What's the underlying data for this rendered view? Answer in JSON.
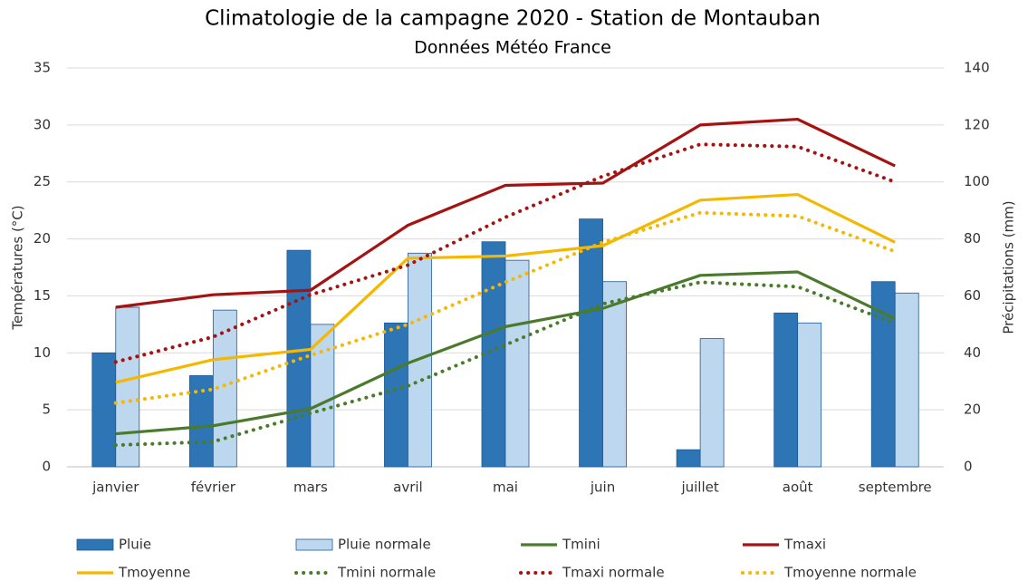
{
  "chart_data": {
    "type": "combo",
    "title": "Climatologie de la campagne 2020 - Station de Montauban",
    "subtitle": "Données Météo France",
    "y_label": "Températures (°C)",
    "y2_label": "Précipitations (mm)",
    "categories": [
      "janvier",
      "février",
      "mars",
      "avril",
      "mai",
      "juin",
      "juillet",
      "août",
      "septembre"
    ],
    "ylim": [
      0,
      35
    ],
    "yticks": [
      0,
      5,
      10,
      15,
      20,
      25,
      30,
      35
    ],
    "y2lim": [
      0,
      140
    ],
    "y2ticks": [
      0,
      20,
      40,
      60,
      80,
      100,
      120,
      140
    ],
    "grid": true,
    "legend": "bottom",
    "series": [
      {
        "name": "Pluie",
        "type": "bar",
        "axis": "y2",
        "color": "#2e75b6",
        "values": [
          40,
          32,
          76,
          50.5,
          79,
          87,
          6,
          54,
          65
        ]
      },
      {
        "name": "Pluie normale",
        "type": "bar",
        "axis": "y2",
        "color": "#bdd7ee",
        "values": [
          56,
          55,
          50,
          75,
          72.5,
          65,
          45,
          50.5,
          61
        ]
      },
      {
        "name": "Tmini",
        "type": "line",
        "color": "#4a7a2c",
        "dashed": false,
        "values": [
          2.9,
          3.6,
          5.1,
          9.1,
          12.3,
          13.9,
          16.8,
          17.1,
          13
        ]
      },
      {
        "name": "Tmaxi",
        "type": "line",
        "color": "#a51212",
        "dashed": false,
        "values": [
          14,
          15.1,
          15.5,
          21.2,
          24.7,
          24.9,
          30,
          30.5,
          26.4
        ]
      },
      {
        "name": "Tmoyenne",
        "type": "line",
        "color": "#f5b800",
        "dashed": false,
        "values": [
          7.4,
          9.4,
          10.3,
          18.3,
          18.5,
          19.4,
          23.4,
          23.9,
          19.7
        ]
      },
      {
        "name": "Tmini normale",
        "type": "line",
        "color": "#4a7a2c",
        "dashed": true,
        "values": [
          1.9,
          2.2,
          4.7,
          7.1,
          10.7,
          14.3,
          16.2,
          15.8,
          12.6
        ]
      },
      {
        "name": "Tmaxi normale",
        "type": "line",
        "color": "#a51212",
        "dashed": true,
        "values": [
          9.2,
          11.4,
          15.1,
          17.7,
          21.9,
          25.5,
          28.3,
          28.1,
          25
        ]
      },
      {
        "name": "Tmoyenne normale",
        "type": "line",
        "color": "#f5b800",
        "dashed": true,
        "values": [
          5.6,
          6.8,
          9.8,
          12.5,
          16.2,
          19.7,
          22.3,
          22,
          18.9
        ]
      }
    ]
  }
}
